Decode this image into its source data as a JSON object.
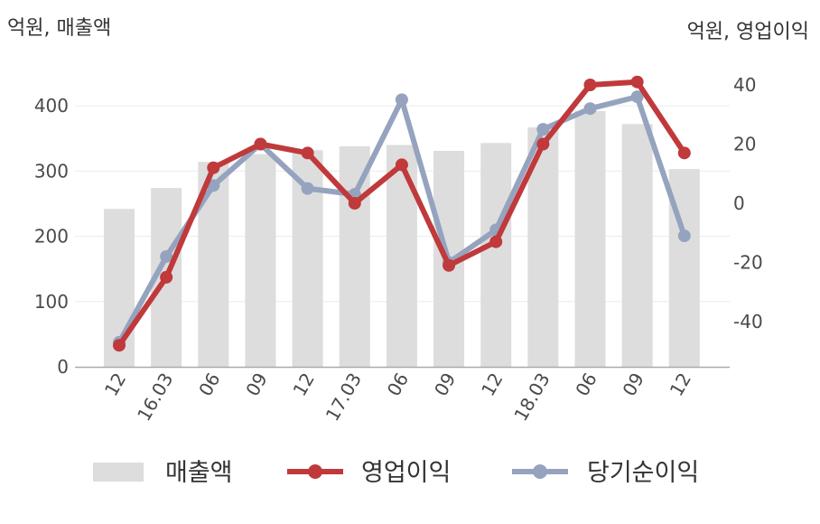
{
  "chart_data": {
    "type": "bar+line",
    "left_axis_label": "억원, 매출액",
    "right_axis_label": "억원, 영업이익",
    "categories": [
      "12",
      "16.03",
      "06",
      "09",
      "12",
      "17.03",
      "06",
      "09",
      "12",
      "18.03",
      "06",
      "09",
      "12"
    ],
    "left_ylim": [
      0,
      450
    ],
    "left_ticks": [
      0,
      100,
      200,
      300,
      400
    ],
    "right_ylim": [
      -55,
      45
    ],
    "right_ticks": [
      -40,
      -20,
      0,
      20,
      40
    ],
    "grid": true,
    "legend_position": "bottom",
    "series": [
      {
        "name": "매출액",
        "kind": "bar",
        "axis": "left",
        "color": "#dddddd",
        "values": [
          242,
          274,
          314,
          326,
          332,
          338,
          340,
          331,
          343,
          367,
          392,
          372,
          303
        ]
      },
      {
        "name": "영업이익",
        "kind": "line",
        "axis": "right",
        "color": "#c0393b",
        "values": [
          -48,
          -25,
          12,
          20,
          17,
          0,
          13,
          -21,
          -13,
          20,
          40,
          41,
          17
        ]
      },
      {
        "name": "당기순이익",
        "kind": "line",
        "axis": "right",
        "color": "#95a3bf",
        "values": [
          -47,
          -18,
          6,
          20,
          5,
          3,
          35,
          -20,
          -9,
          25,
          32,
          36,
          -11
        ]
      }
    ]
  }
}
